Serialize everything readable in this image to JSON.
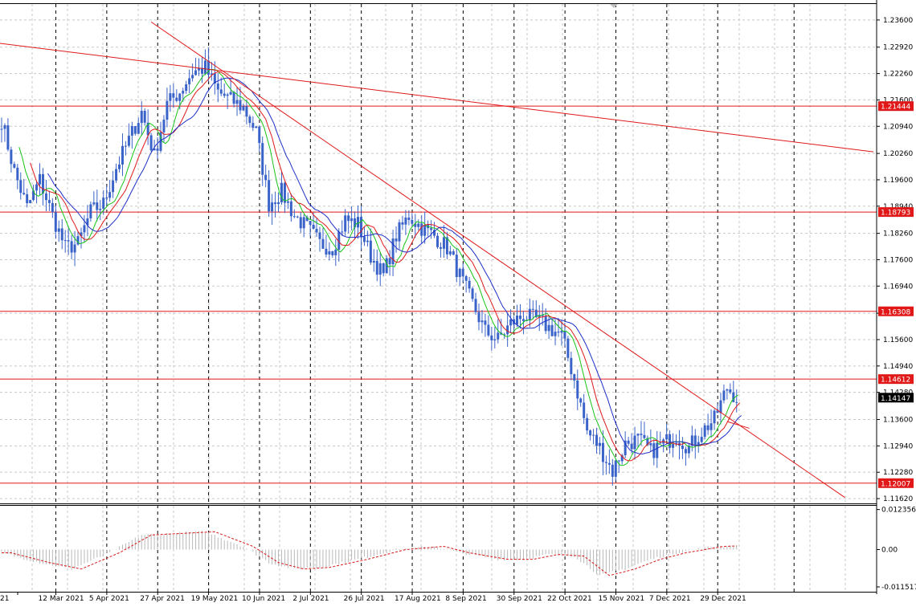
{
  "chart_data": {
    "type": "candlestick",
    "instrument_note": "",
    "colors": {
      "candle": "#3a63c9",
      "ma_fast": "#19c419",
      "ma_mid": "#e01818",
      "ma_slow": "#1c2fc8",
      "level_line": "#e01818",
      "level_tag_bg": "#e01818",
      "current_tag_bg": "#000000",
      "grid": "#c8c8c8",
      "vgrid_dark": "#000000",
      "osc_bar": "#b8b8b8",
      "osc_signal": "#d81818"
    },
    "price_axis": {
      "ylim": [
        1.115,
        1.24
      ],
      "ticks": [
        "1.23600",
        "1.22920",
        "1.22260",
        "1.21600",
        "1.20940",
        "1.20260",
        "1.19600",
        "1.18940",
        "1.18260",
        "1.17600",
        "1.16940",
        "1.16260",
        "1.15600",
        "1.14940",
        "1.14280",
        "1.13600",
        "1.12940",
        "1.12280",
        "1.11620"
      ]
    },
    "levels": [
      {
        "value": 1.21444,
        "label": "1.21444"
      },
      {
        "value": 1.18793,
        "label": "1.18793"
      },
      {
        "value": 1.16308,
        "label": "1.16308"
      },
      {
        "value": 1.14612,
        "label": "1.14612"
      },
      {
        "value": 1.12007,
        "label": "1.12007"
      }
    ],
    "current_price": {
      "value": 1.14147,
      "label": "1.14147"
    },
    "x_axis": {
      "labels": [
        "21",
        "12 Mar 2021",
        "5 Apr 2021",
        "27 Apr 2021",
        "19 May 2021",
        "10 Jun 2021",
        "2 Jul 2021",
        "26 Jul 2021",
        "17 Aug 2021",
        "8 Sep 2021",
        "30 Sep 2021",
        "22 Oct 2021",
        "15 Nov 2021",
        "7 Dec 2021",
        "29 Dec 2021"
      ],
      "label_index": [
        0,
        12,
        28,
        44,
        60,
        76,
        92,
        108,
        124,
        140,
        156,
        172,
        188,
        204,
        220
      ]
    },
    "close_path": [
      [
        0,
        1.211
      ],
      [
        4,
        1.198
      ],
      [
        8,
        1.189
      ],
      [
        12,
        1.196
      ],
      [
        16,
        1.187
      ],
      [
        20,
        1.179
      ],
      [
        24,
        1.18
      ],
      [
        28,
        1.188
      ],
      [
        32,
        1.19
      ],
      [
        36,
        1.199
      ],
      [
        40,
        1.206
      ],
      [
        44,
        1.213
      ],
      [
        48,
        1.202
      ],
      [
        52,
        1.215
      ],
      [
        56,
        1.218
      ],
      [
        60,
        1.223
      ],
      [
        64,
        1.224
      ],
      [
        68,
        1.218
      ],
      [
        72,
        1.216
      ],
      [
        76,
        1.214
      ],
      [
        80,
        1.208
      ],
      [
        84,
        1.19
      ],
      [
        88,
        1.193
      ],
      [
        92,
        1.187
      ],
      [
        96,
        1.184
      ],
      [
        100,
        1.18
      ],
      [
        104,
        1.179
      ],
      [
        108,
        1.186
      ],
      [
        112,
        1.185
      ],
      [
        116,
        1.177
      ],
      [
        120,
        1.172
      ],
      [
        124,
        1.182
      ],
      [
        128,
        1.187
      ],
      [
        132,
        1.184
      ],
      [
        136,
        1.182
      ],
      [
        140,
        1.179
      ],
      [
        144,
        1.172
      ],
      [
        148,
        1.165
      ],
      [
        152,
        1.158
      ],
      [
        156,
        1.156
      ],
      [
        160,
        1.16
      ],
      [
        164,
        1.162
      ],
      [
        168,
        1.161
      ],
      [
        172,
        1.159
      ],
      [
        176,
        1.157
      ],
      [
        180,
        1.146
      ],
      [
        184,
        1.133
      ],
      [
        188,
        1.129
      ],
      [
        192,
        1.123
      ],
      [
        196,
        1.13
      ],
      [
        200,
        1.131
      ],
      [
        204,
        1.128
      ],
      [
        208,
        1.13
      ],
      [
        212,
        1.132
      ],
      [
        216,
        1.129
      ],
      [
        220,
        1.133
      ],
      [
        224,
        1.136
      ],
      [
        228,
        1.144
      ],
      [
        231,
        1.1415
      ]
    ],
    "candle_count": 232,
    "moving_averages": [
      {
        "key": "ma_fast",
        "period": 5,
        "shift": 3
      },
      {
        "key": "ma_mid",
        "period": 8,
        "shift": 5
      },
      {
        "key": "ma_slow",
        "period": 13,
        "shift": 8
      }
    ],
    "trendlines": [
      {
        "from": [
          -1,
          1.2302
        ],
        "to": [
          274,
          1.203
        ]
      },
      {
        "from": [
          47,
          1.2355
        ],
        "to": [
          265,
          1.1165
        ]
      },
      {
        "from": [
          228,
          1.1355
        ],
        "to": [
          235,
          1.1338
        ]
      }
    ],
    "oscillator": {
      "ticks": [
        "0.012356",
        "0.00",
        "-0.011517"
      ],
      "ylim": [
        -0.013,
        0.0135
      ],
      "zero": 0.0,
      "path": [
        [
          0,
          -0.001
        ],
        [
          12,
          -0.004
        ],
        [
          22,
          -0.006
        ],
        [
          34,
          -0.001
        ],
        [
          44,
          0.0045
        ],
        [
          54,
          0.005
        ],
        [
          64,
          0.0055
        ],
        [
          76,
          0.001
        ],
        [
          84,
          -0.004
        ],
        [
          92,
          -0.006
        ],
        [
          100,
          -0.0055
        ],
        [
          112,
          -0.003
        ],
        [
          124,
          0.0
        ],
        [
          136,
          0.001
        ],
        [
          144,
          -0.001
        ],
        [
          156,
          -0.003
        ],
        [
          164,
          -0.003
        ],
        [
          172,
          -0.0015
        ],
        [
          180,
          -0.002
        ],
        [
          188,
          -0.008
        ],
        [
          196,
          -0.006
        ],
        [
          204,
          -0.003
        ],
        [
          212,
          -0.001
        ],
        [
          224,
          0.001
        ],
        [
          231,
          0.0012
        ]
      ]
    }
  }
}
